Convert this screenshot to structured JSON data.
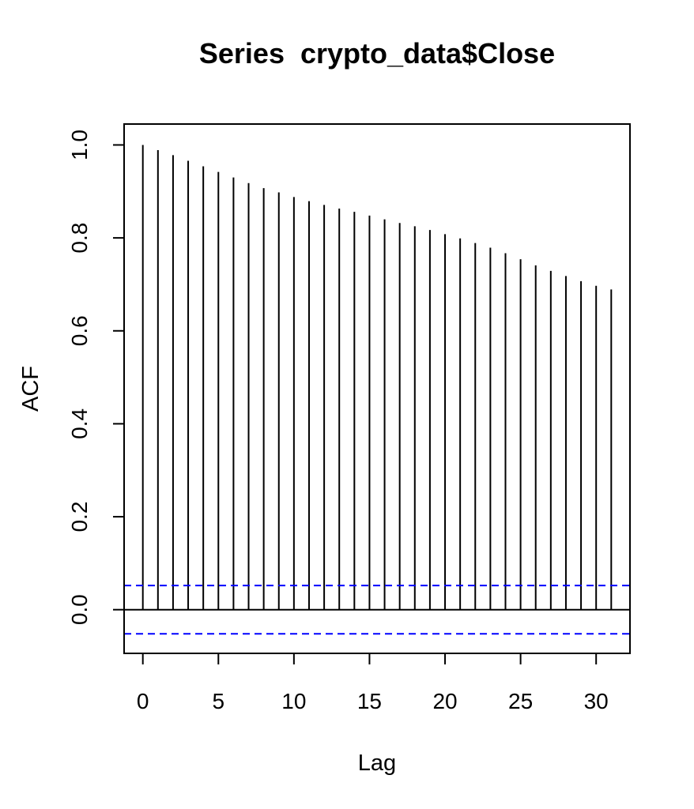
{
  "chart_data": {
    "type": "bar",
    "title": "Series  crypto_data$Close",
    "xlabel": "Lag",
    "ylabel": "ACF",
    "x": [
      0,
      1,
      2,
      3,
      4,
      5,
      6,
      7,
      8,
      9,
      10,
      11,
      12,
      13,
      14,
      15,
      16,
      17,
      18,
      19,
      20,
      21,
      22,
      23,
      24,
      25,
      26,
      27,
      28,
      29,
      30,
      31
    ],
    "values": [
      1.0,
      0.989,
      0.978,
      0.966,
      0.954,
      0.942,
      0.93,
      0.918,
      0.907,
      0.898,
      0.888,
      0.879,
      0.871,
      0.863,
      0.856,
      0.848,
      0.84,
      0.832,
      0.825,
      0.817,
      0.808,
      0.799,
      0.789,
      0.779,
      0.767,
      0.754,
      0.741,
      0.729,
      0.718,
      0.707,
      0.697,
      0.689
    ],
    "confidence_bound": 0.052,
    "xlim": [
      -1.24,
      32.24
    ],
    "ylim": [
      -0.094,
      1.045
    ],
    "x_ticks": [
      0,
      5,
      10,
      15,
      20,
      25,
      30
    ],
    "y_ticks": [
      0.0,
      0.2,
      0.4,
      0.6,
      0.8,
      1.0
    ],
    "x_tick_labels": [
      "0",
      "5",
      "10",
      "15",
      "20",
      "25",
      "30"
    ],
    "y_tick_labels": [
      "0.0",
      "0.2",
      "0.4",
      "0.6",
      "0.8",
      "1.0"
    ],
    "grid": false,
    "colors": {
      "bars": "#000000",
      "zero_line": "#000000",
      "confidence": "#0000ff",
      "frame": "#000000"
    }
  }
}
